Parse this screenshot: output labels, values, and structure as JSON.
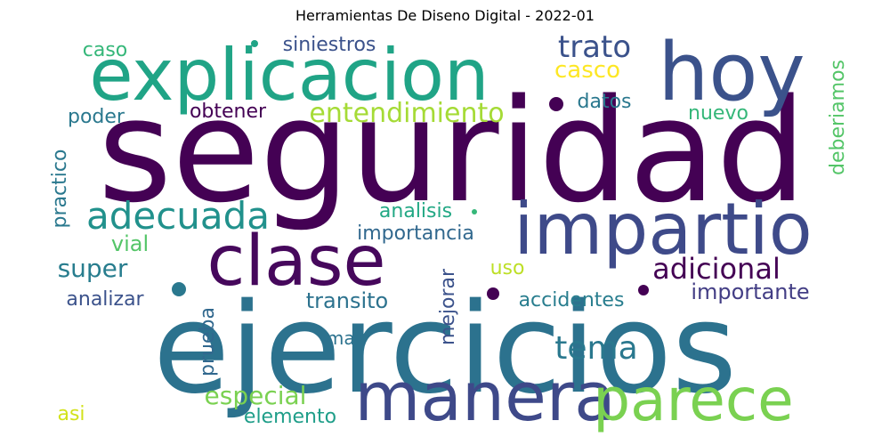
{
  "title": "Herramientas De Diseno Digital - 2022-01",
  "words": [
    {
      "text": "seguridad",
      "color": "#440154"
    },
    {
      "text": "ejercicios",
      "color": "#2c728e"
    },
    {
      "text": "explicacion",
      "color": "#20a486"
    },
    {
      "text": "hoy",
      "color": "#3b528b"
    },
    {
      "text": "impartio",
      "color": "#3e4a89"
    },
    {
      "text": "clase",
      "color": "#46085c"
    },
    {
      "text": "manera",
      "color": "#3e4989"
    },
    {
      "text": "parece",
      "color": "#7ad151"
    },
    {
      "text": "adecuada",
      "color": "#21918c"
    },
    {
      "text": "trato",
      "color": "#3b528b"
    },
    {
      "text": "entendimiento",
      "color": "#a5db36"
    },
    {
      "text": "casco",
      "color": "#fde725"
    },
    {
      "text": "siniestros",
      "color": "#3b528b"
    },
    {
      "text": "caso",
      "color": "#35b779"
    },
    {
      "text": "poder",
      "color": "#2a788e"
    },
    {
      "text": "obtener",
      "color": "#440154"
    },
    {
      "text": "datos",
      "color": "#2a788e"
    },
    {
      "text": "nuevo",
      "color": "#35b779"
    },
    {
      "text": "deberiamos",
      "color": "#54c568"
    },
    {
      "text": "practico",
      "color": "#2a788e"
    },
    {
      "text": "analisis",
      "color": "#22a884"
    },
    {
      "text": "importancia",
      "color": "#31688e"
    },
    {
      "text": "vial",
      "color": "#54c568"
    },
    {
      "text": "super",
      "color": "#287d8e"
    },
    {
      "text": "uso",
      "color": "#bddf26"
    },
    {
      "text": "adicional",
      "color": "#440154"
    },
    {
      "text": "importante",
      "color": "#433e85"
    },
    {
      "text": "analizar",
      "color": "#3b528b"
    },
    {
      "text": "transito",
      "color": "#2c728e"
    },
    {
      "text": "accidentes",
      "color": "#287d8e"
    },
    {
      "text": "mejorar",
      "color": "#3b528b"
    },
    {
      "text": "tema",
      "color": "#2a788e"
    },
    {
      "text": "mas",
      "color": "#2c728e"
    },
    {
      "text": "prueba",
      "color": "#31688e"
    },
    {
      "text": "especial",
      "color": "#7ad151"
    },
    {
      "text": "asi",
      "color": "#d2e21b"
    },
    {
      "text": "elemento",
      "color": "#1f9e89"
    }
  ]
}
